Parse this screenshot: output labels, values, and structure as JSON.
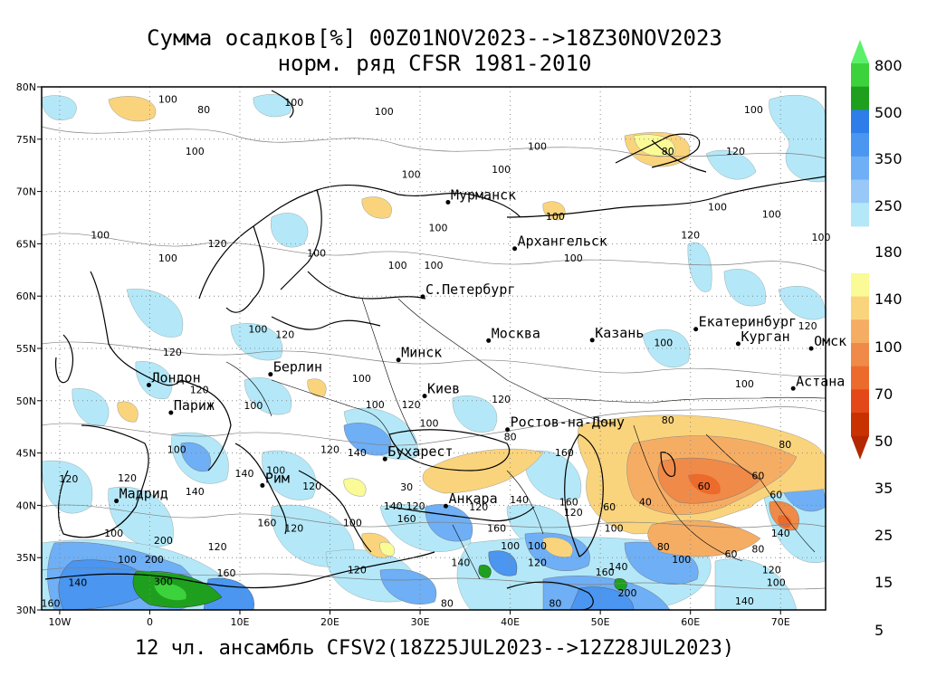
{
  "title_line1": "Сумма осадков[%] 00Z01NOV2023-->18Z30NOV2023",
  "title_line2": "норм. ряд CFSR 1981-2010",
  "footer": "12 чл. ансамбль CFSV2(18Z25JUL2023-->12Z28JUL2023)",
  "map": {
    "lon_range": [
      -12,
      75
    ],
    "lat_range": [
      30,
      80
    ],
    "lon_ticks": [
      "10W",
      "0",
      "10E",
      "20E",
      "30E",
      "40E",
      "50E",
      "60E",
      "70E"
    ],
    "lat_ticks": [
      "30N",
      "35N",
      "40N",
      "45N",
      "50N",
      "55N",
      "60N",
      "65N",
      "70N",
      "75N",
      "80N"
    ],
    "grid": true
  },
  "cities": [
    {
      "name": "Мурманск",
      "lon": 33.1,
      "lat": 68.97
    },
    {
      "name": "Архангельск",
      "lon": 40.5,
      "lat": 64.54
    },
    {
      "name": "С.Петербург",
      "lon": 30.3,
      "lat": 59.94
    },
    {
      "name": "Москва",
      "lon": 37.6,
      "lat": 55.75
    },
    {
      "name": "Казань",
      "lon": 49.1,
      "lat": 55.79
    },
    {
      "name": "Екатеринбург",
      "lon": 60.6,
      "lat": 56.84
    },
    {
      "name": "Курган",
      "lon": 65.3,
      "lat": 55.44
    },
    {
      "name": "Омск",
      "lon": 73.4,
      "lat": 54.99
    },
    {
      "name": "Астана",
      "lon": 71.4,
      "lat": 51.17
    },
    {
      "name": "Минск",
      "lon": 27.6,
      "lat": 53.9
    },
    {
      "name": "Берлин",
      "lon": 13.4,
      "lat": 52.52
    },
    {
      "name": "Лондон",
      "lon": -0.1,
      "lat": 51.5
    },
    {
      "name": "Париж",
      "lon": 2.35,
      "lat": 48.86
    },
    {
      "name": "Киев",
      "lon": 30.5,
      "lat": 50.45
    },
    {
      "name": "Ростов-на-Дону",
      "lon": 39.7,
      "lat": 47.24
    },
    {
      "name": "Бухарест",
      "lon": 26.1,
      "lat": 44.43
    },
    {
      "name": "Рим",
      "lon": 12.5,
      "lat": 41.9
    },
    {
      "name": "Мадрид",
      "lon": -3.7,
      "lat": 40.42
    },
    {
      "name": "Анкара",
      "lon": 32.85,
      "lat": 39.93
    }
  ],
  "contour_labels": [
    {
      "v": "100",
      "lon": 2,
      "lat": 78.5
    },
    {
      "v": "80",
      "lon": 6,
      "lat": 77.5
    },
    {
      "v": "100",
      "lon": 16,
      "lat": 78.2
    },
    {
      "v": "100",
      "lon": 5,
      "lat": 73.5
    },
    {
      "v": "100",
      "lon": 26,
      "lat": 77.3
    },
    {
      "v": "100",
      "lon": 43,
      "lat": 74
    },
    {
      "v": "100",
      "lon": 67,
      "lat": 77.5
    },
    {
      "v": "80",
      "lon": 57.5,
      "lat": 73.5
    },
    {
      "v": "120",
      "lon": 65,
      "lat": 73.5
    },
    {
      "v": "100",
      "lon": 29,
      "lat": 71.3
    },
    {
      "v": "100",
      "lon": 39,
      "lat": 71.8
    },
    {
      "v": "100",
      "lon": 32,
      "lat": 66.2
    },
    {
      "v": "100",
      "lon": 45,
      "lat": 67.3
    },
    {
      "v": "100",
      "lon": 63,
      "lat": 68.2
    },
    {
      "v": "100",
      "lon": 69,
      "lat": 67.5
    },
    {
      "v": "100",
      "lon": -5.5,
      "lat": 65.5
    },
    {
      "v": "120",
      "lon": 7.5,
      "lat": 64.7
    },
    {
      "v": "100",
      "lon": 2,
      "lat": 63.3
    },
    {
      "v": "100",
      "lon": 18.5,
      "lat": 63.8
    },
    {
      "v": "100",
      "lon": 27.5,
      "lat": 62.6
    },
    {
      "v": "100",
      "lon": 31.5,
      "lat": 62.6
    },
    {
      "v": "100",
      "lon": 47,
      "lat": 63.3
    },
    {
      "v": "120",
      "lon": 60,
      "lat": 65.5
    },
    {
      "v": "100",
      "lon": 74.5,
      "lat": 65.3
    },
    {
      "v": "100",
      "lon": 12,
      "lat": 56.5
    },
    {
      "v": "120",
      "lon": 15,
      "lat": 56
    },
    {
      "v": "120",
      "lon": 2.5,
      "lat": 54.3
    },
    {
      "v": "120",
      "lon": 73,
      "lat": 56.8
    },
    {
      "v": "100",
      "lon": 57,
      "lat": 55.2
    },
    {
      "v": "100",
      "lon": 66,
      "lat": 51.3
    },
    {
      "v": "100",
      "lon": 23.5,
      "lat": 51.8
    },
    {
      "v": "120",
      "lon": 5.5,
      "lat": 50.7
    },
    {
      "v": "100",
      "lon": 11.5,
      "lat": 49.2
    },
    {
      "v": "100",
      "lon": 25,
      "lat": 49.3
    },
    {
      "v": "120",
      "lon": 29,
      "lat": 49.3
    },
    {
      "v": "120",
      "lon": 39,
      "lat": 49.8
    },
    {
      "v": "100",
      "lon": 31,
      "lat": 47.5
    },
    {
      "v": "80",
      "lon": 57.5,
      "lat": 47.8
    },
    {
      "v": "80",
      "lon": 40,
      "lat": 46.2
    },
    {
      "v": "80",
      "lon": 70.5,
      "lat": 45.5
    },
    {
      "v": "100",
      "lon": 3,
      "lat": 45
    },
    {
      "v": "120",
      "lon": 20,
      "lat": 45
    },
    {
      "v": "140",
      "lon": 23,
      "lat": 44.7
    },
    {
      "v": "160",
      "lon": 46,
      "lat": 44.7
    },
    {
      "v": "120",
      "lon": -9,
      "lat": 42.2
    },
    {
      "v": "120",
      "lon": -2.5,
      "lat": 42.3
    },
    {
      "v": "140",
      "lon": 10.5,
      "lat": 42.7
    },
    {
      "v": "100",
      "lon": 14,
      "lat": 43
    },
    {
      "v": "140",
      "lon": 5,
      "lat": 41
    },
    {
      "v": "120",
      "lon": 18,
      "lat": 41.5
    },
    {
      "v": "140",
      "lon": 27,
      "lat": 39.6
    },
    {
      "v": "120",
      "lon": 29.5,
      "lat": 39.6
    },
    {
      "v": "30",
      "lon": 28.5,
      "lat": 41.4
    },
    {
      "v": "160",
      "lon": 28.5,
      "lat": 38.4
    },
    {
      "v": "120",
      "lon": 36.5,
      "lat": 39.5
    },
    {
      "v": "140",
      "lon": 41,
      "lat": 40.2
    },
    {
      "v": "160",
      "lon": 46.5,
      "lat": 40
    },
    {
      "v": "120",
      "lon": 47,
      "lat": 39
    },
    {
      "v": "60",
      "lon": 51,
      "lat": 39.5
    },
    {
      "v": "40",
      "lon": 55,
      "lat": 40
    },
    {
      "v": "60",
      "lon": 61.5,
      "lat": 41.5
    },
    {
      "v": "60",
      "lon": 67.5,
      "lat": 42.5
    },
    {
      "v": "60",
      "lon": 69.5,
      "lat": 40.7
    },
    {
      "v": "160",
      "lon": 13,
      "lat": 38
    },
    {
      "v": "120",
      "lon": 16,
      "lat": 37.5
    },
    {
      "v": "100",
      "lon": 22.5,
      "lat": 38
    },
    {
      "v": "160",
      "lon": 38.5,
      "lat": 37.5
    },
    {
      "v": "100",
      "lon": 51.5,
      "lat": 37.5
    },
    {
      "v": "100",
      "lon": -4,
      "lat": 37
    },
    {
      "v": "200",
      "lon": 1.5,
      "lat": 36.3
    },
    {
      "v": "120",
      "lon": 7.5,
      "lat": 35.7
    },
    {
      "v": "100",
      "lon": 40,
      "lat": 35.8
    },
    {
      "v": "100",
      "lon": 43,
      "lat": 35.8
    },
    {
      "v": "80",
      "lon": 57,
      "lat": 35.7
    },
    {
      "v": "80",
      "lon": 67.5,
      "lat": 35.5
    },
    {
      "v": "140",
      "lon": 70,
      "lat": 37
    },
    {
      "v": "100",
      "lon": -2.5,
      "lat": 34.5
    },
    {
      "v": "200",
      "lon": 0.5,
      "lat": 34.5
    },
    {
      "v": "140",
      "lon": 34.5,
      "lat": 34.2
    },
    {
      "v": "120",
      "lon": 43,
      "lat": 34.2
    },
    {
      "v": "140",
      "lon": 52,
      "lat": 33.8
    },
    {
      "v": "100",
      "lon": 59,
      "lat": 34.5
    },
    {
      "v": "60",
      "lon": 64.5,
      "lat": 35
    },
    {
      "v": "160",
      "lon": 8.5,
      "lat": 33.2
    },
    {
      "v": "120",
      "lon": 23,
      "lat": 33.5
    },
    {
      "v": "160",
      "lon": 50.5,
      "lat": 33.3
    },
    {
      "v": "120",
      "lon": 69,
      "lat": 33.5
    },
    {
      "v": "300",
      "lon": 1.5,
      "lat": 32.4
    },
    {
      "v": "140",
      "lon": -8,
      "lat": 32.3
    },
    {
      "v": "100",
      "lon": 69.5,
      "lat": 32.3
    },
    {
      "v": "200",
      "lon": 53,
      "lat": 31.3
    },
    {
      "v": "160",
      "lon": -11,
      "lat": 30.3
    },
    {
      "v": "80",
      "lon": 33,
      "lat": 30.3
    },
    {
      "v": "80",
      "lon": 45,
      "lat": 30.3
    },
    {
      "v": "140",
      "lon": 66,
      "lat": 30.5
    }
  ],
  "colorbar": {
    "labels": [
      "800",
      "500",
      "350",
      "250",
      "180",
      "140",
      "100",
      "70",
      "50",
      "35",
      "25",
      "15",
      "5"
    ],
    "upper_colors": [
      "#3cd23c",
      "#1ea01e",
      "#2e7de8",
      "#4a96f0",
      "#6eaff5",
      "#98c8f8",
      "#b4e8f8"
    ],
    "lower_colors": [
      "#fafa96",
      "#fad47c",
      "#f5ad64",
      "#f08a48",
      "#eb6a2c",
      "#e24818",
      "#c83200"
    ],
    "top_arrow_color": "#5cf06a",
    "bottom_arrow_color": "#b42800"
  }
}
